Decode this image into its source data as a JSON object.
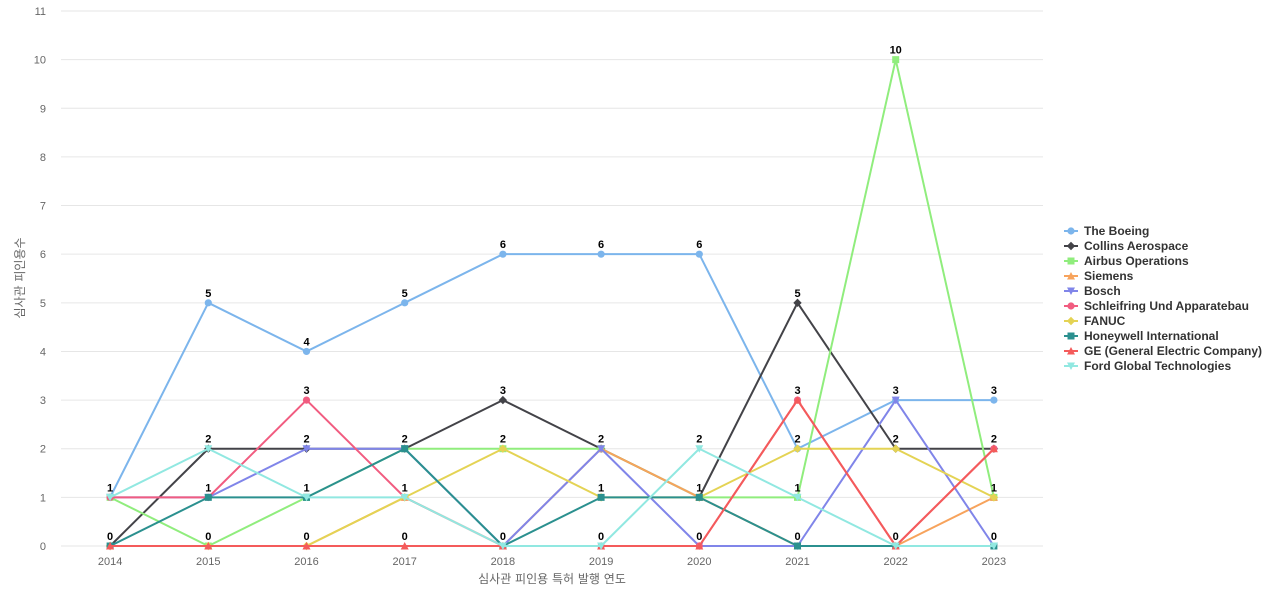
{
  "chart_data": {
    "type": "line",
    "title": "",
    "xlabel": "심사관 피인용 특허 발행 연도",
    "ylabel": "심사관 피인용수",
    "categories": [
      "2014",
      "2015",
      "2016",
      "2017",
      "2018",
      "2019",
      "2020",
      "2021",
      "2022",
      "2023"
    ],
    "ylim": [
      0,
      11
    ],
    "yticks": [
      0,
      1,
      2,
      3,
      4,
      5,
      6,
      7,
      8,
      9,
      10,
      11
    ],
    "grid": true,
    "legend_position": "right",
    "series": [
      {
        "name": "The Boeing",
        "color": "#7cb5ec",
        "marker": "circle",
        "values": [
          1,
          5,
          4,
          5,
          6,
          6,
          6,
          2,
          3,
          3
        ]
      },
      {
        "name": "Collins Aerospace",
        "color": "#434348",
        "marker": "diamond",
        "values": [
          0,
          2,
          2,
          2,
          3,
          2,
          1,
          5,
          2,
          2
        ]
      },
      {
        "name": "Airbus Operations",
        "color": "#90ed7d",
        "marker": "square",
        "values": [
          1,
          0,
          1,
          2,
          2,
          2,
          1,
          1,
          10,
          1
        ]
      },
      {
        "name": "Siemens",
        "color": "#f7a35c",
        "marker": "triangle",
        "values": [
          0,
          0,
          0,
          1,
          0,
          2,
          1,
          0,
          0,
          1
        ]
      },
      {
        "name": "Bosch",
        "color": "#8085e9",
        "marker": "triangle-down",
        "values": [
          1,
          1,
          2,
          2,
          0,
          2,
          0,
          0,
          3,
          0
        ]
      },
      {
        "name": "Schleifring Und Apparatebau",
        "color": "#f15c80",
        "marker": "circle",
        "values": [
          1,
          1,
          3,
          1,
          0,
          0,
          0,
          3,
          0,
          2
        ]
      },
      {
        "name": "FANUC",
        "color": "#e4d354",
        "marker": "diamond",
        "values": [
          0,
          0,
          0,
          1,
          2,
          1,
          1,
          2,
          2,
          1
        ]
      },
      {
        "name": "Honeywell International",
        "color": "#2b908f",
        "marker": "square",
        "values": [
          0,
          1,
          1,
          2,
          0,
          1,
          1,
          0,
          0,
          0
        ]
      },
      {
        "name": "GE (General Electric Company)",
        "color": "#f45b5b",
        "marker": "triangle",
        "values": [
          0,
          0,
          0,
          0,
          0,
          0,
          0,
          3,
          0,
          2
        ]
      },
      {
        "name": "Ford Global Technologies",
        "color": "#91e8e1",
        "marker": "triangle-down",
        "values": [
          1,
          2,
          1,
          1,
          0,
          0,
          2,
          1,
          0,
          0
        ]
      }
    ],
    "data_labels": [
      "1",
      "5",
      "4",
      "5",
      "6",
      "6",
      "6",
      "5",
      "10",
      "3"
    ]
  }
}
